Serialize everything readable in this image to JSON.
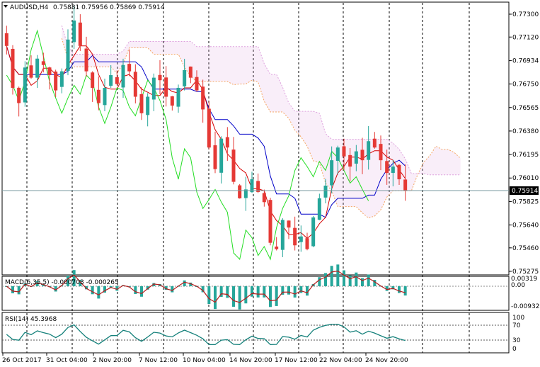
{
  "header": {
    "symbol_label": "AUDUSD,H4",
    "ohlc_values": "0.75881 0.75956 0.75869 0.75914"
  },
  "price_axis": {
    "labels": [
      "0.77300",
      "0.77120",
      "0.76934",
      "0.76750",
      "0.76565",
      "0.76380",
      "0.76195",
      "0.76010",
      "0.75825",
      "0.75640",
      "0.75460",
      "0.75275"
    ],
    "current_price": "0.75914"
  },
  "macd": {
    "label": "MACD(6,35,5) -0.000703 -0.000265",
    "axis_labels": [
      "0.00319",
      "0.00",
      "-0.009325"
    ]
  },
  "rsi": {
    "label": "RSI(14) 45.3968",
    "axis_labels": [
      "100",
      "70",
      "30",
      "0"
    ]
  },
  "time_axis": {
    "labels": [
      "26 Oct 2017",
      "31 Oct 04:00",
      "2 Nov 20:00",
      "7 Nov 12:00",
      "10 Nov 04:00",
      "14 Nov 20:00",
      "17 Nov 12:00",
      "22 Nov 04:00",
      "24 Nov 20:00"
    ]
  },
  "colors": {
    "bull_candle": "#26a69a",
    "bear_candle": "#e53935",
    "tenkan": "#d50000",
    "kijun": "#0000c8",
    "chikou": "#22dd22",
    "cloud_a": "#f4a460",
    "cloud_b": "#dda0dd",
    "macd_hist": "#26a69a",
    "macd_signal": "#b71c1c",
    "rsi_line": "#14807a"
  },
  "chart_data": {
    "type": "candlestick",
    "symbol": "AUDUSD",
    "timeframe": "H4",
    "close_path": [
      0.7705,
      0.7672,
      0.766,
      0.7688,
      0.768,
      0.7695,
      0.769,
      0.7682,
      0.767,
      0.7685,
      0.771,
      0.7725,
      0.7705,
      0.7685,
      0.7672,
      0.766,
      0.7672,
      0.7682,
      0.7675,
      0.769,
      0.7685,
      0.7665,
      0.7652,
      0.7665,
      0.768,
      0.7678,
      0.7665,
      0.7658,
      0.7672,
      0.7686,
      0.768,
      0.767,
      0.7655,
      0.7625,
      0.7608,
      0.7632,
      0.7625,
      0.7598,
      0.7585,
      0.7592,
      0.76,
      0.759,
      0.7582,
      0.755,
      0.7545,
      0.7568,
      0.7562,
      0.7548,
      0.7555,
      0.7545,
      0.757,
      0.7585,
      0.7595,
      0.7615,
      0.7625,
      0.7618,
      0.761,
      0.7622,
      0.7615,
      0.763,
      0.7625,
      0.7615,
      0.7605,
      0.761,
      0.76,
      0.7591
    ]
  }
}
